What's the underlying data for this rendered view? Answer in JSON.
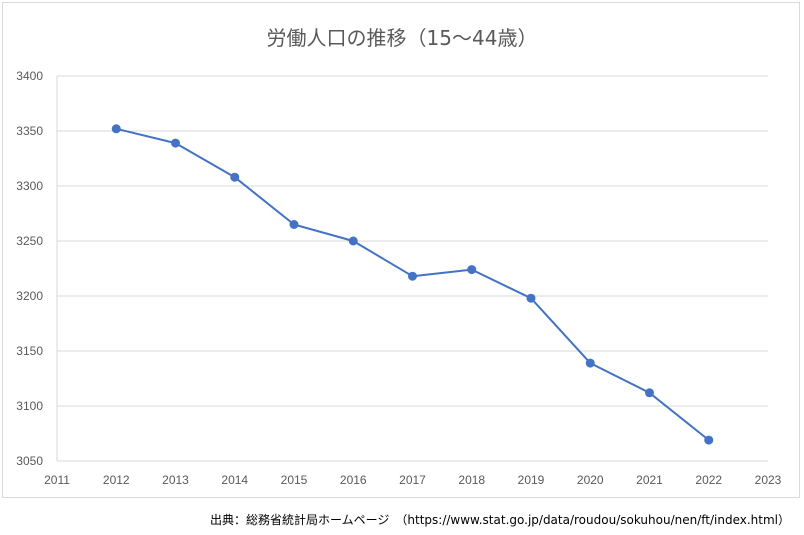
{
  "chart_data": {
    "type": "line",
    "title": "労働人口の推移（15～44歳）",
    "xlabel": "",
    "ylabel": "",
    "x": [
      2012,
      2013,
      2014,
      2015,
      2016,
      2017,
      2018,
      2019,
      2020,
      2021,
      2022
    ],
    "series": [
      {
        "values": [
          3352,
          3339,
          3308,
          3265,
          3250,
          3218,
          3224,
          3198,
          3139,
          3112,
          3069
        ]
      }
    ],
    "xlim": [
      2011,
      2023
    ],
    "ylim": [
      3050,
      3400
    ],
    "x_ticks": [
      "2011",
      "2012",
      "2013",
      "2014",
      "2015",
      "2016",
      "2017",
      "2018",
      "2019",
      "2020",
      "2021",
      "2022",
      "2023"
    ],
    "y_ticks": [
      "3050",
      "3100",
      "3150",
      "3200",
      "3250",
      "3300",
      "3350",
      "3400"
    ],
    "grid": true,
    "line_color": "#4472c4",
    "grid_color": "#d9d9d9"
  },
  "source": "出典：総務省統計局ホームページ　（https://www.stat.go.jp/data/roudou/sokuhou/nen/ft/index.html）"
}
